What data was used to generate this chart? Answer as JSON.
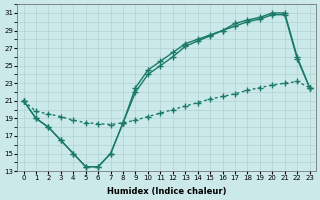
{
  "xlabel": "Humidex (Indice chaleur)",
  "background_color": "#cce9e9",
  "grid_color": "#aacccc",
  "line_color": "#1a7a6a",
  "xlim": [
    -0.5,
    23.5
  ],
  "ylim": [
    13,
    32
  ],
  "xticks": [
    0,
    1,
    2,
    3,
    4,
    5,
    6,
    7,
    8,
    9,
    10,
    11,
    12,
    13,
    14,
    15,
    16,
    17,
    18,
    19,
    20,
    21,
    22,
    23
  ],
  "yticks": [
    13,
    15,
    17,
    19,
    21,
    23,
    25,
    27,
    29,
    31
  ],
  "line1_x": [
    0,
    1,
    2,
    3,
    4,
    5,
    6,
    7,
    8,
    9,
    10,
    11,
    12,
    13,
    14,
    15,
    16,
    17,
    18,
    19,
    20,
    21,
    22,
    23
  ],
  "line1_y": [
    21,
    19,
    18,
    16.5,
    15,
    13.5,
    13.5,
    15,
    18.5,
    22.5,
    24.5,
    25.5,
    26.5,
    27.5,
    28.0,
    28.5,
    29.0,
    29.8,
    30.2,
    30.5,
    31.0,
    31.0,
    26.0,
    22.5
  ],
  "line2_x": [
    0,
    1,
    2,
    3,
    4,
    5,
    6,
    7,
    8,
    9,
    10,
    11,
    12,
    13,
    14,
    15,
    16,
    17,
    18,
    19,
    20,
    21,
    22,
    23
  ],
  "line2_y": [
    21,
    19,
    18,
    16.5,
    15,
    13.5,
    13.5,
    15,
    18.5,
    22.0,
    24.0,
    25.0,
    26.0,
    27.2,
    27.8,
    28.4,
    29.0,
    29.5,
    30.0,
    30.3,
    30.8,
    30.8,
    25.8,
    22.5
  ],
  "line3_x": [
    0,
    1,
    2,
    3,
    4,
    5,
    6,
    7,
    8,
    9,
    10,
    11,
    12,
    13,
    14,
    15,
    16,
    17,
    18,
    19,
    20,
    21,
    22,
    23
  ],
  "line3_y": [
    21,
    19.8,
    19.5,
    19.2,
    18.8,
    18.5,
    18.4,
    18.3,
    18.5,
    18.8,
    19.2,
    19.6,
    20.0,
    20.4,
    20.8,
    21.2,
    21.5,
    21.8,
    22.2,
    22.5,
    22.8,
    23.0,
    23.2,
    22.5
  ],
  "marker": "+",
  "marker_size": 4,
  "line_width": 1.0
}
